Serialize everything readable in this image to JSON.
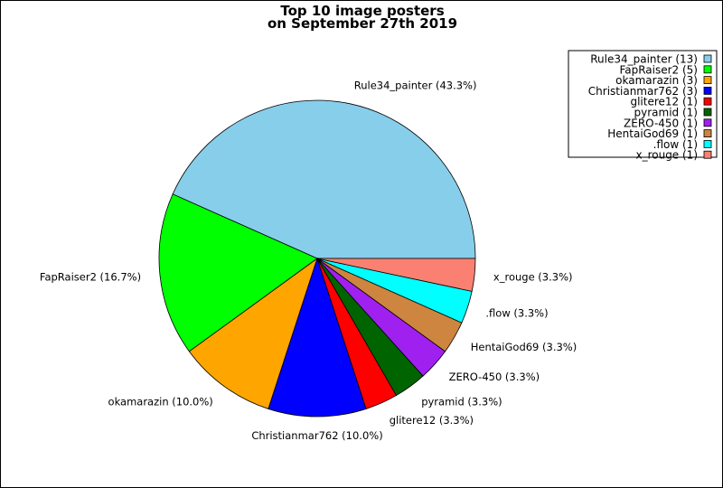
{
  "chart_data": {
    "type": "pie",
    "title": [
      "Top 10 image posters",
      "on September 27th 2019"
    ],
    "slices": [
      {
        "name": "Rule34_painter",
        "value": 13,
        "percent_label": "Rule34_painter (43.3%)",
        "legend_label": "Rule34_painter (13)",
        "color": "#87CEEB"
      },
      {
        "name": "FapRaiser2",
        "value": 5,
        "percent_label": "FapRaiser2 (16.7%)",
        "legend_label": "FapRaiser2 (5)",
        "color": "#00FF00"
      },
      {
        "name": "okamarazin",
        "value": 3,
        "percent_label": "okamarazin (10.0%)",
        "legend_label": "okamarazin (3)",
        "color": "#FFA500"
      },
      {
        "name": "Christianmar762",
        "value": 3,
        "percent_label": "Christianmar762 (10.0%)",
        "legend_label": "Christianmar762 (3)",
        "color": "#0000FF"
      },
      {
        "name": "glitere12",
        "value": 1,
        "percent_label": "glitere12 (3.3%)",
        "legend_label": "glitere12 (1)",
        "color": "#FF0000"
      },
      {
        "name": "pyramid",
        "value": 1,
        "percent_label": "pyramid (3.3%)",
        "legend_label": "pyramid (1)",
        "color": "#006400"
      },
      {
        "name": "ZERO-450",
        "value": 1,
        "percent_label": "ZERO-450 (3.3%)",
        "legend_label": "ZERO-450 (1)",
        "color": "#A020F0"
      },
      {
        "name": "HentaiGod69",
        "value": 1,
        "percent_label": "HentaiGod69 (3.3%)",
        "legend_label": "HentaiGod69 (1)",
        "color": "#CD853F"
      },
      {
        "name": ".flow",
        "value": 1,
        "percent_label": ".flow (3.3%)",
        "legend_label": ".flow (1)",
        "color": "#00FFFF"
      },
      {
        "name": "x_rouge",
        "value": 1,
        "percent_label": "x_rouge (3.3%)",
        "legend_label": "x_rouge (1)",
        "color": "#FA8072"
      }
    ],
    "legend_placement": "top-right"
  }
}
